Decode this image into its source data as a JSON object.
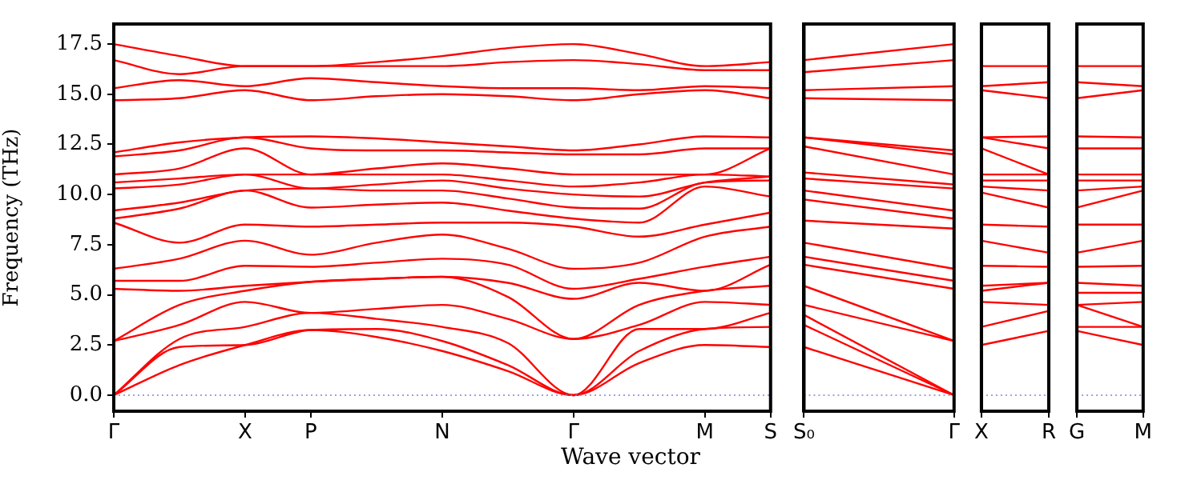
{
  "chart_data": [
    {
      "type": "line",
      "ylabel": "Frequency (THz)",
      "xlabel": "Wave vector",
      "legend": false,
      "marker": "none",
      "line_style": "solid",
      "categories": [
        "Γ",
        null,
        "X",
        "P",
        null,
        "N",
        null,
        "Γ",
        null,
        "M",
        "S"
      ],
      "ylim": [
        -0.8,
        18.5
      ],
      "yticks": [
        {
          "value": 0,
          "label": "0.0"
        },
        {
          "value": 2.5,
          "label": "2.5"
        },
        {
          "value": 5,
          "label": "5.0"
        },
        {
          "value": 7.5,
          "label": "7.5"
        },
        {
          "value": 10,
          "label": "10.0"
        },
        {
          "value": 12.5,
          "label": "12.5"
        },
        {
          "value": 15,
          "label": "15.0"
        },
        {
          "value": 17.5,
          "label": "17.5"
        }
      ],
      "ref_lines": [
        {
          "axis": "y",
          "value": 0,
          "color": "#8080e0",
          "line_style": "dotted"
        }
      ],
      "series": [
        {
          "color": "#ff0000",
          "values": [
            0,
            1.5,
            2.5,
            3.25,
            2.9,
            2.2,
            1.2,
            0,
            1.6,
            2.5,
            2.4
          ]
        },
        {
          "color": "#ff0000",
          "values": [
            0,
            2.4,
            2.5,
            3.25,
            3.3,
            2.7,
            1.5,
            0,
            2.2,
            3.3,
            3.4
          ]
        },
        {
          "color": "#ff0000",
          "values": [
            0,
            2.8,
            3.4,
            4.1,
            3.8,
            3.4,
            2.6,
            0,
            3.3,
            3.3,
            4.1
          ]
        },
        {
          "color": "#ff0000",
          "values": [
            2.7,
            3.5,
            4.65,
            4.1,
            4.3,
            4.5,
            3.8,
            2.8,
            3.5,
            4.65,
            4.5
          ]
        },
        {
          "color": "#ff0000",
          "values": [
            2.7,
            4.5,
            5.2,
            5.65,
            5.8,
            5.9,
            4.9,
            2.8,
            4.5,
            5.2,
            5.45
          ]
        },
        {
          "color": "#ff0000",
          "values": [
            5.3,
            5.2,
            5.45,
            5.65,
            5.8,
            5.9,
            5.6,
            4.8,
            5.6,
            5.2,
            6.5
          ]
        },
        {
          "color": "#ff0000",
          "values": [
            5.7,
            5.7,
            6.45,
            6.4,
            6.6,
            6.8,
            6.5,
            5.3,
            5.8,
            6.4,
            6.9
          ]
        },
        {
          "color": "#ff0000",
          "values": [
            6.3,
            6.8,
            7.7,
            7,
            7.6,
            8,
            7.3,
            6.3,
            6.6,
            7.9,
            8.4
          ]
        },
        {
          "color": "#ff0000",
          "values": [
            8.6,
            7.6,
            8.5,
            8.4,
            8.5,
            8.6,
            8.6,
            8.4,
            7.9,
            8.5,
            9.1
          ]
        },
        {
          "color": "#ff0000",
          "values": [
            8.8,
            9.3,
            10.2,
            9.35,
            9.5,
            9.6,
            9.2,
            8.8,
            8.6,
            10.4,
            9.9
          ]
        },
        {
          "color": "#ff0000",
          "values": [
            9.2,
            9.6,
            10.2,
            10.3,
            10.2,
            10.2,
            9.8,
            9.35,
            9.3,
            10.6,
            10.7
          ]
        },
        {
          "color": "#ff0000",
          "values": [
            10.3,
            10.5,
            11,
            10.3,
            10.5,
            10.7,
            10.3,
            10,
            9.9,
            10.6,
            10.9
          ]
        },
        {
          "color": "#ff0000",
          "values": [
            10.6,
            10.8,
            11,
            11,
            11,
            11,
            10.7,
            10.4,
            10.6,
            11,
            10.9
          ]
        },
        {
          "color": "#ff0000",
          "values": [
            11,
            11.3,
            12.3,
            11,
            11.3,
            11.55,
            11.3,
            11,
            11,
            11,
            12.3
          ]
        },
        {
          "color": "#ff0000",
          "values": [
            11.9,
            12.2,
            12.85,
            12.3,
            12.2,
            12.2,
            12.1,
            12,
            12,
            12.3,
            12.3
          ]
        },
        {
          "color": "#ff0000",
          "values": [
            12.1,
            12.6,
            12.85,
            12.9,
            12.8,
            12.6,
            12.4,
            12.2,
            12.5,
            12.9,
            12.85
          ]
        },
        {
          "color": "#ff0000",
          "values": [
            14.7,
            14.8,
            15.2,
            14.7,
            14.9,
            15,
            14.9,
            14.7,
            15,
            15.2,
            14.8
          ]
        },
        {
          "color": "#ff0000",
          "values": [
            15.3,
            15.7,
            15.4,
            15.8,
            15.6,
            15.4,
            15.3,
            15.3,
            15.2,
            15.4,
            15.3
          ]
        },
        {
          "color": "#ff0000",
          "values": [
            16.7,
            16,
            16.4,
            16.4,
            16.4,
            16.4,
            16.6,
            16.7,
            16.5,
            16.2,
            16.2
          ]
        },
        {
          "color": "#ff0000",
          "values": [
            17.5,
            16.9,
            16.4,
            16.4,
            16.6,
            16.9,
            17.3,
            17.5,
            17,
            16.4,
            16.6
          ]
        }
      ]
    },
    {
      "type": "line",
      "legend": false,
      "marker": "none",
      "line_style": "solid",
      "tick_labels": "x",
      "categories": [
        "S₀",
        "Γ"
      ],
      "ylim": [
        -0.8,
        18.5
      ],
      "ref_lines": [
        {
          "axis": "y",
          "value": 0,
          "color": "#8080e0",
          "line_style": "dotted"
        }
      ],
      "series": [
        {
          "color": "#ff0000",
          "values": [
            2.4,
            0
          ]
        },
        {
          "color": "#ff0000",
          "values": [
            3.5,
            0
          ]
        },
        {
          "color": "#ff0000",
          "values": [
            4,
            0
          ]
        },
        {
          "color": "#ff0000",
          "values": [
            4.5,
            2.7
          ]
        },
        {
          "color": "#ff0000",
          "values": [
            5.45,
            2.7
          ]
        },
        {
          "color": "#ff0000",
          "values": [
            6.5,
            5.3
          ]
        },
        {
          "color": "#ff0000",
          "values": [
            6.9,
            5.7
          ]
        },
        {
          "color": "#ff0000",
          "values": [
            7.6,
            6.3
          ]
        },
        {
          "color": "#ff0000",
          "values": [
            8.7,
            8.3
          ]
        },
        {
          "color": "#ff0000",
          "values": [
            9.75,
            8.8
          ]
        },
        {
          "color": "#ff0000",
          "values": [
            10.2,
            9.2
          ]
        },
        {
          "color": "#ff0000",
          "values": [
            10.8,
            10.3
          ]
        },
        {
          "color": "#ff0000",
          "values": [
            11.1,
            10.5
          ]
        },
        {
          "color": "#ff0000",
          "values": [
            12.4,
            11
          ]
        },
        {
          "color": "#ff0000",
          "values": [
            12.85,
            12
          ]
        },
        {
          "color": "#ff0000",
          "values": [
            12.85,
            12.2
          ]
        },
        {
          "color": "#ff0000",
          "values": [
            14.8,
            14.7
          ]
        },
        {
          "color": "#ff0000",
          "values": [
            15.2,
            15.4
          ]
        },
        {
          "color": "#ff0000",
          "values": [
            16.1,
            16.7
          ]
        },
        {
          "color": "#ff0000",
          "values": [
            16.7,
            17.5
          ]
        }
      ]
    },
    {
      "type": "line",
      "legend": false,
      "marker": "none",
      "line_style": "solid",
      "tick_labels": "x",
      "categories": [
        "X",
        "R"
      ],
      "ylim": [
        -0.8,
        18.5
      ],
      "ref_lines": [
        {
          "axis": "y",
          "value": 0,
          "color": "#8080e0",
          "line_style": "dotted"
        }
      ],
      "series": [
        {
          "color": "#ff0000",
          "values": [
            2.5,
            3.2
          ]
        },
        {
          "color": "#ff0000",
          "values": [
            3.4,
            4.2
          ]
        },
        {
          "color": "#ff0000",
          "values": [
            4.65,
            4.5
          ]
        },
        {
          "color": "#ff0000",
          "values": [
            5.2,
            5.6
          ]
        },
        {
          "color": "#ff0000",
          "values": [
            5.45,
            5.6
          ]
        },
        {
          "color": "#ff0000",
          "values": [
            6.45,
            6.4
          ]
        },
        {
          "color": "#ff0000",
          "values": [
            7.7,
            7.1
          ]
        },
        {
          "color": "#ff0000",
          "values": [
            8.5,
            8.4
          ]
        },
        {
          "color": "#ff0000",
          "values": [
            10.1,
            9.35
          ]
        },
        {
          "color": "#ff0000",
          "values": [
            10.4,
            10.2
          ]
        },
        {
          "color": "#ff0000",
          "values": [
            10.7,
            10.7
          ]
        },
        {
          "color": "#ff0000",
          "values": [
            11,
            11
          ]
        },
        {
          "color": "#ff0000",
          "values": [
            12.3,
            11
          ]
        },
        {
          "color": "#ff0000",
          "values": [
            12.85,
            12.3
          ]
        },
        {
          "color": "#ff0000",
          "values": [
            12.85,
            12.9
          ]
        },
        {
          "color": "#ff0000",
          "values": [
            15.2,
            14.8
          ]
        },
        {
          "color": "#ff0000",
          "values": [
            15.4,
            15.6
          ]
        },
        {
          "color": "#ff0000",
          "values": [
            16.4,
            16.4
          ]
        }
      ]
    },
    {
      "type": "line",
      "legend": false,
      "marker": "none",
      "line_style": "solid",
      "tick_labels": "x",
      "categories": [
        "G",
        "M"
      ],
      "ylim": [
        -0.8,
        18.5
      ],
      "ref_lines": [
        {
          "axis": "y",
          "value": 0,
          "color": "#8080e0",
          "line_style": "dotted"
        }
      ],
      "series": [
        {
          "color": "#ff0000",
          "values": [
            3.2,
            2.5
          ]
        },
        {
          "color": "#ff0000",
          "values": [
            3.4,
            3.4
          ]
        },
        {
          "color": "#ff0000",
          "values": [
            4.5,
            3.4
          ]
        },
        {
          "color": "#ff0000",
          "values": [
            4.5,
            4.65
          ]
        },
        {
          "color": "#ff0000",
          "values": [
            5.1,
            5.1
          ]
        },
        {
          "color": "#ff0000",
          "values": [
            5.6,
            5.45
          ]
        },
        {
          "color": "#ff0000",
          "values": [
            6.4,
            6.45
          ]
        },
        {
          "color": "#ff0000",
          "values": [
            7.1,
            7.7
          ]
        },
        {
          "color": "#ff0000",
          "values": [
            8.5,
            8.5
          ]
        },
        {
          "color": "#ff0000",
          "values": [
            9.35,
            10.2
          ]
        },
        {
          "color": "#ff0000",
          "values": [
            10.2,
            10.4
          ]
        },
        {
          "color": "#ff0000",
          "values": [
            10.7,
            10.7
          ]
        },
        {
          "color": "#ff0000",
          "values": [
            11,
            11
          ]
        },
        {
          "color": "#ff0000",
          "values": [
            12.3,
            12.3
          ]
        },
        {
          "color": "#ff0000",
          "values": [
            12.9,
            12.85
          ]
        },
        {
          "color": "#ff0000",
          "values": [
            14.8,
            15.2
          ]
        },
        {
          "color": "#ff0000",
          "values": [
            15.6,
            15.4
          ]
        },
        {
          "color": "#ff0000",
          "values": [
            16.4,
            16.4
          ]
        }
      ]
    }
  ]
}
